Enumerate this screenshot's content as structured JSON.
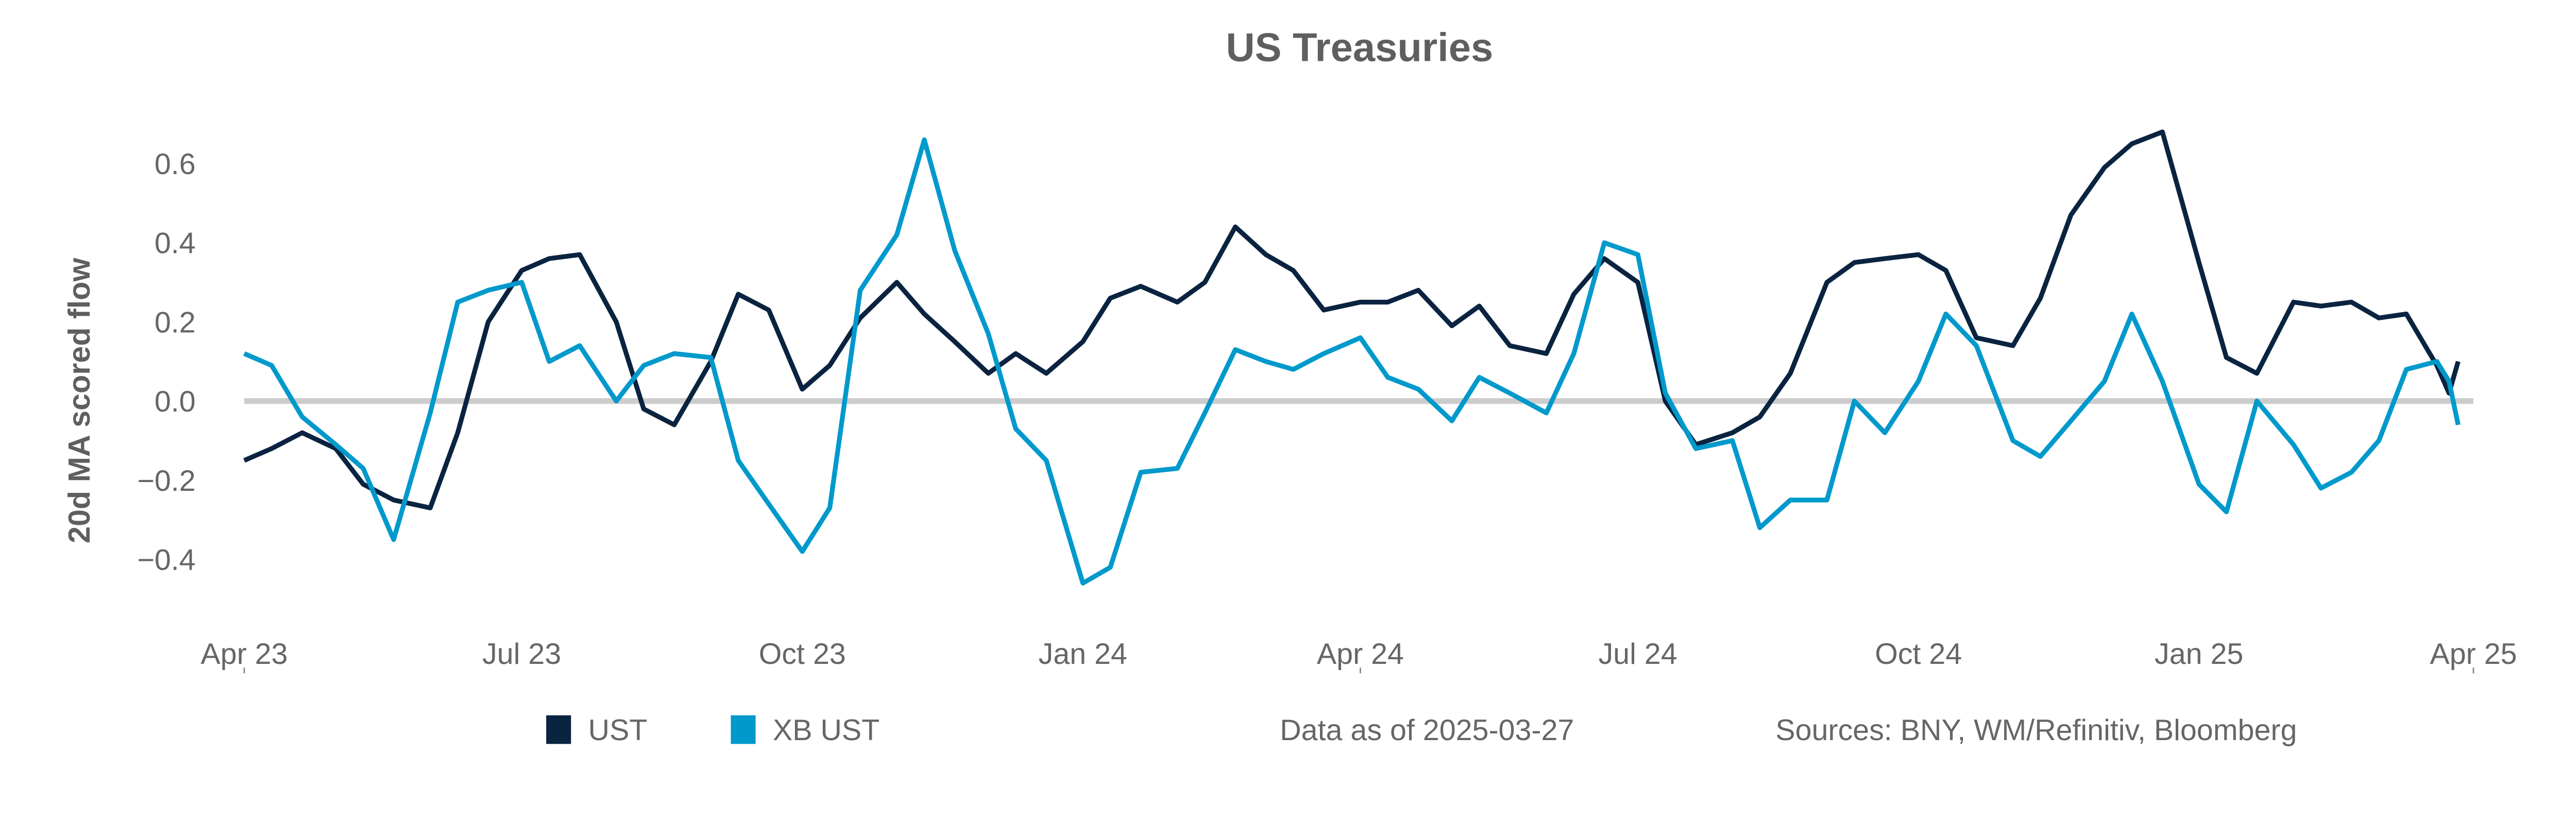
{
  "chart_data": {
    "type": "line",
    "title": "US Treasuries",
    "xlabel": "",
    "ylabel": "20d MA scored flow",
    "xlim": [
      "2023-04-01",
      "2025-04-01"
    ],
    "ylim": [
      -0.55,
      0.75
    ],
    "yticks": [
      -0.4,
      -0.2,
      0.0,
      0.2,
      0.4,
      0.6
    ],
    "ytick_labels": [
      "−0.4",
      "−0.2",
      "0.0",
      "0.2",
      "0.4",
      "0.6"
    ],
    "xticks": [
      "2023-04-01",
      "2023-07-01",
      "2023-10-01",
      "2024-01-01",
      "2024-04-01",
      "2024-07-01",
      "2024-10-01",
      "2025-01-01",
      "2025-04-01"
    ],
    "xtick_labels": [
      "Apr 23",
      "Jul 23",
      "Oct 23",
      "Jan 24",
      "Apr 24",
      "Jul 24",
      "Oct 24",
      "Jan 25",
      "Apr 25"
    ],
    "grid": false,
    "zero_line": true,
    "legend_placement": "bottom-left",
    "x": [
      "2023-04-01",
      "2023-04-10",
      "2023-04-20",
      "2023-05-01",
      "2023-05-10",
      "2023-05-20",
      "2023-06-01",
      "2023-06-10",
      "2023-06-20",
      "2023-07-01",
      "2023-07-10",
      "2023-07-20",
      "2023-08-01",
      "2023-08-10",
      "2023-08-20",
      "2023-09-01",
      "2023-09-10",
      "2023-09-20",
      "2023-10-01",
      "2023-10-10",
      "2023-10-20",
      "2023-11-01",
      "2023-11-10",
      "2023-11-20",
      "2023-12-01",
      "2023-12-10",
      "2023-12-20",
      "2024-01-01",
      "2024-01-10",
      "2024-01-20",
      "2024-02-01",
      "2024-02-10",
      "2024-02-20",
      "2024-03-01",
      "2024-03-10",
      "2024-03-20",
      "2024-04-01",
      "2024-04-10",
      "2024-04-20",
      "2024-05-01",
      "2024-05-10",
      "2024-05-20",
      "2024-06-01",
      "2024-06-10",
      "2024-06-20",
      "2024-07-01",
      "2024-07-10",
      "2024-07-20",
      "2024-08-01",
      "2024-08-10",
      "2024-08-20",
      "2024-09-01",
      "2024-09-10",
      "2024-09-20",
      "2024-10-01",
      "2024-10-10",
      "2024-10-20",
      "2024-11-01",
      "2024-11-10",
      "2024-11-20",
      "2024-12-01",
      "2024-12-10",
      "2024-12-20",
      "2025-01-01",
      "2025-01-10",
      "2025-01-20",
      "2025-02-01",
      "2025-02-10",
      "2025-02-20",
      "2025-03-01",
      "2025-03-10",
      "2025-03-20",
      "2025-03-24",
      "2025-03-27"
    ],
    "series": [
      {
        "name": "UST",
        "color": "#0a2340",
        "values": [
          -0.15,
          -0.12,
          -0.08,
          -0.12,
          -0.21,
          -0.25,
          -0.27,
          -0.08,
          0.2,
          0.33,
          0.36,
          0.37,
          0.2,
          -0.02,
          -0.06,
          0.1,
          0.27,
          0.23,
          0.03,
          0.09,
          0.21,
          0.3,
          0.22,
          0.15,
          0.07,
          0.12,
          0.07,
          0.15,
          0.26,
          0.29,
          0.25,
          0.3,
          0.44,
          0.37,
          0.33,
          0.23,
          0.25,
          0.25,
          0.28,
          0.19,
          0.24,
          0.14,
          0.12,
          0.27,
          0.36,
          0.3,
          0.0,
          -0.11,
          -0.08,
          -0.04,
          0.07,
          0.3,
          0.35,
          0.36,
          0.37,
          0.33,
          0.16,
          0.14,
          0.26,
          0.47,
          0.59,
          0.65,
          0.68,
          0.35,
          0.11,
          0.07,
          0.25,
          0.24,
          0.25,
          0.21,
          0.22,
          0.09,
          0.02,
          0.1
        ]
      },
      {
        "name": "XB UST",
        "color": "#0099cc",
        "values": [
          0.12,
          0.09,
          -0.04,
          -0.11,
          -0.17,
          -0.35,
          -0.03,
          0.25,
          0.28,
          0.3,
          0.1,
          0.14,
          0.0,
          0.09,
          0.12,
          0.11,
          -0.15,
          -0.26,
          -0.38,
          -0.27,
          0.28,
          0.42,
          0.66,
          0.38,
          0.17,
          -0.07,
          -0.15,
          -0.46,
          -0.42,
          -0.18,
          -0.17,
          -0.03,
          0.13,
          0.1,
          0.08,
          0.12,
          0.16,
          0.06,
          0.03,
          -0.05,
          0.06,
          0.02,
          -0.03,
          0.12,
          0.4,
          0.37,
          0.02,
          -0.12,
          -0.1,
          -0.32,
          -0.25,
          -0.25,
          0.0,
          -0.08,
          0.05,
          0.22,
          0.14,
          -0.1,
          -0.14,
          -0.05,
          0.05,
          0.22,
          0.05,
          -0.21,
          -0.28,
          0.0,
          -0.11,
          -0.22,
          -0.18,
          -0.1,
          0.08,
          0.1,
          0.05,
          -0.06
        ]
      }
    ],
    "colors": {
      "zero_line": "#cccccc",
      "text": "#666666"
    }
  },
  "footer": {
    "data_as_of": "Data as of 2025-03-27",
    "sources": "Sources:  BNY, WM/Refinitiv, Bloomberg"
  }
}
